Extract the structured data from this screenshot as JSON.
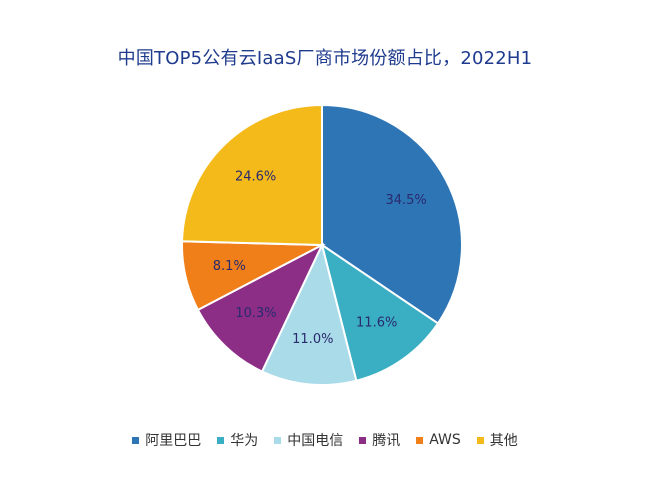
{
  "chart_data": {
    "type": "pie",
    "title": "中国TOP5公有云IaaS厂商市场份额占比，2022H1",
    "slices": [
      {
        "name": "阿里巴巴",
        "value": 34.5,
        "label": "34.5%",
        "color": "#2e75b6"
      },
      {
        "name": "华为",
        "value": 11.6,
        "label": "11.6%",
        "color": "#3aaec2"
      },
      {
        "name": "中国电信",
        "value": 11.0,
        "label": "11.0%",
        "color": "#a9dbe8"
      },
      {
        "name": "腾讯",
        "value": 10.3,
        "label": "10.3%",
        "color": "#8c2e86"
      },
      {
        "name": "AWS",
        "value": 8.1,
        "label": "8.1%",
        "color": "#f07f1a"
      },
      {
        "name": "其他",
        "value": 24.6,
        "label": "24.6%",
        "color": "#f3ba1a"
      }
    ],
    "start_angle": "top",
    "direction": "clockwise",
    "legend_position": "bottom"
  }
}
